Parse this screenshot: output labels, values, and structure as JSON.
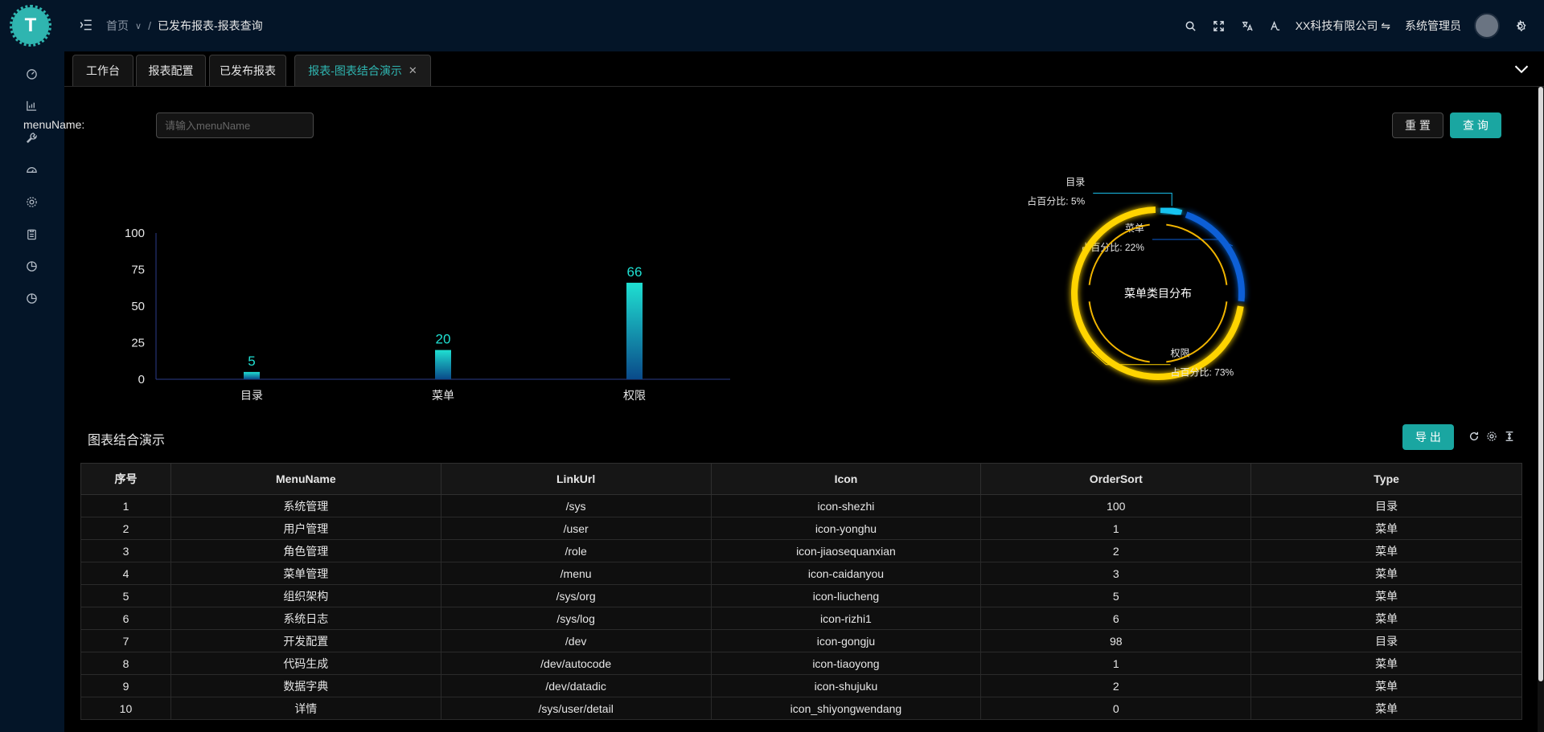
{
  "app": {
    "logo_letter": "T"
  },
  "header": {
    "breadcrumbs": [
      "首页",
      "已发布报表-报表查询"
    ],
    "company": "XX科技有限公司",
    "user": "系统管理员"
  },
  "tabs": [
    {
      "label": "工作台"
    },
    {
      "label": "报表配置"
    },
    {
      "label": "已发布报表"
    },
    {
      "label": "报表-图表结合演示",
      "active": true
    }
  ],
  "search": {
    "label": "menuName:",
    "placeholder": "请输入menuName",
    "value": ""
  },
  "buttons": {
    "reset": "重 置",
    "query": "查 询",
    "export": "导 出"
  },
  "table": {
    "title": "图表结合演示",
    "columns": [
      "序号",
      "MenuName",
      "LinkUrl",
      "Icon",
      "OrderSort",
      "Type"
    ],
    "rows": [
      [
        "1",
        "系统管理",
        "/sys",
        "icon-shezhi",
        "100",
        "目录"
      ],
      [
        "2",
        "用户管理",
        "/user",
        "icon-yonghu",
        "1",
        "菜单"
      ],
      [
        "3",
        "角色管理",
        "/role",
        "icon-jiaosequanxian",
        "2",
        "菜单"
      ],
      [
        "4",
        "菜单管理",
        "/menu",
        "icon-caidanyou",
        "3",
        "菜单"
      ],
      [
        "5",
        "组织架构",
        "/sys/org",
        "icon-liucheng",
        "5",
        "菜单"
      ],
      [
        "6",
        "系统日志",
        "/sys/log",
        "icon-rizhi1",
        "6",
        "菜单"
      ],
      [
        "7",
        "开发配置",
        "/dev",
        "icon-gongju",
        "98",
        "目录"
      ],
      [
        "8",
        "代码生成",
        "/dev/autocode",
        "icon-tiaoyong",
        "1",
        "菜单"
      ],
      [
        "9",
        "数据字典",
        "/dev/datadic",
        "icon-shujuku",
        "2",
        "菜单"
      ],
      [
        "10",
        "详情",
        "/sys/user/detail",
        "icon_shiyongwendang",
        "0",
        "菜单"
      ]
    ]
  },
  "chart_data": [
    {
      "type": "bar",
      "categories": [
        "目录",
        "菜单",
        "权限"
      ],
      "values": [
        5,
        20,
        66
      ],
      "ylim": [
        0,
        100
      ],
      "yticks": [
        0,
        25,
        50,
        75,
        100
      ],
      "title": "",
      "xlabel": "",
      "ylabel": ""
    },
    {
      "type": "pie",
      "title": "菜单类目分布",
      "slices": [
        {
          "name": "目录",
          "value": 5,
          "label": "占百分比: 5%",
          "color": "#19c3f0"
        },
        {
          "name": "菜单",
          "value": 22,
          "label": "占百分比: 22%",
          "color": "#0a5ed6"
        },
        {
          "name": "权限",
          "value": 73,
          "label": "占百分比: 73%",
          "color": "#ffd400"
        }
      ]
    }
  ],
  "colors": {
    "accent": "#1aa6a1",
    "bar_top": "#1fe0d2",
    "bar_bottom": "#0a4a8a",
    "sidebar": "#041528"
  },
  "sidebar_icons": [
    "dashboard-icon",
    "chart-icon",
    "tool-icon",
    "gauge-icon",
    "settings-icon",
    "clipboard-icon",
    "pie-icon",
    "pie-icon"
  ]
}
